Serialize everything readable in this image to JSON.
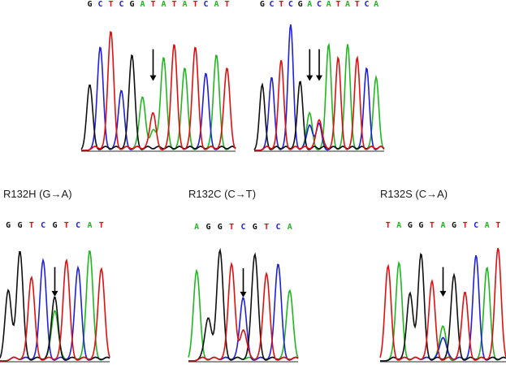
{
  "colors": {
    "A": "#1fb81f",
    "C": "#1f1fdd",
    "G": "#101010",
    "T": "#e01010"
  },
  "panels": [
    {
      "id": "p1",
      "title": "",
      "sequence": "GCTCGATATATCAT",
      "arrow_peaks": [
        6
      ]
    },
    {
      "id": "p2",
      "title": "",
      "sequence": "GCTCGACATATCA",
      "arrow_peaks": [
        5,
        6
      ]
    },
    {
      "id": "p3",
      "title": "R132H (G→A)",
      "sequence": "GGTCGTCAT",
      "arrow_peaks": [
        4
      ]
    },
    {
      "id": "p4",
      "title": "R132C (C→T)",
      "sequence": "AGGTCGTCA",
      "arrow_peaks": [
        4
      ]
    },
    {
      "id": "p5",
      "title": "R132S (C→A)",
      "sequence": "TAGGTAGTCAT",
      "arrow_peaks": [
        5
      ]
    }
  ]
}
